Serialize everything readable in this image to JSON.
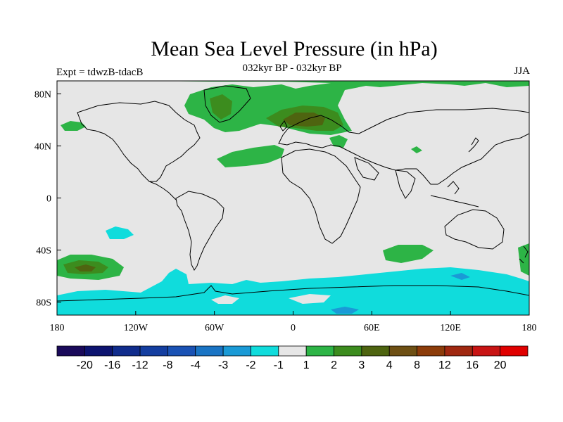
{
  "title": "Mean Sea Level Pressure (in hPa)",
  "subtitle": "032kyr BP - 032kyr BP",
  "left_label": "Expt = tdwzB-tdacB",
  "right_label": "JJA",
  "map": {
    "lon_range": [
      -180,
      180
    ],
    "lat_range": [
      -90,
      90
    ],
    "x_ticks": [
      {
        "value": -180,
        "label": "180"
      },
      {
        "value": -120,
        "label": "120W"
      },
      {
        "value": -60,
        "label": "60W"
      },
      {
        "value": 0,
        "label": "0"
      },
      {
        "value": 60,
        "label": "60E"
      },
      {
        "value": 120,
        "label": "120E"
      },
      {
        "value": 180,
        "label": "180"
      }
    ],
    "y_ticks": [
      {
        "value": 80,
        "label": "80N"
      },
      {
        "value": 40,
        "label": "40N"
      },
      {
        "value": 0,
        "label": "0"
      },
      {
        "value": -40,
        "label": "40S"
      },
      {
        "value": -80,
        "label": "80S"
      }
    ],
    "background_color": "#e6e6e6",
    "coastline_color": "#000000"
  },
  "colorbar": {
    "colors": [
      "#1a0a5a",
      "#0d1470",
      "#102c8c",
      "#143ea0",
      "#1a52b4",
      "#1a74c4",
      "#1a9ad6",
      "#10dcdc",
      "#e6e6e6",
      "#2db446",
      "#3c8c1e",
      "#4e6410",
      "#6e5014",
      "#8c3c0a",
      "#a02810",
      "#c81414",
      "#e00000"
    ],
    "labels": [
      "-20",
      "-16",
      "-12",
      "-8",
      "-4",
      "-3",
      "-2",
      "-1",
      "1",
      "2",
      "3",
      "4",
      "8",
      "12",
      "16",
      "20"
    ]
  }
}
